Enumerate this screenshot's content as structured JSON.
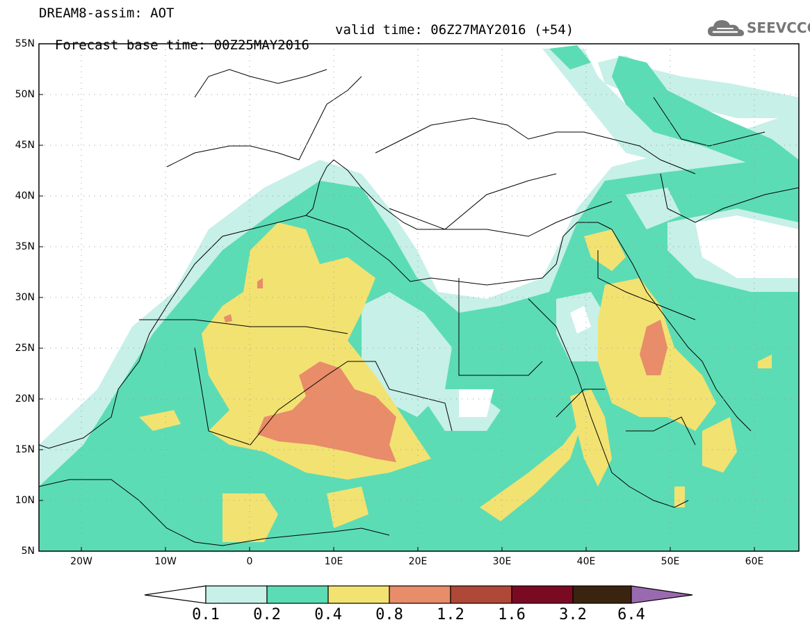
{
  "header": {
    "title": "DREAM8-assim: AOT",
    "base_time": "Forecast base time: 00Z25MAY2016",
    "valid_time": "valid time: 06Z27MAY2016 (+54)"
  },
  "logo": {
    "text": "SEEVCCC",
    "icon": "cloud-icon"
  },
  "map": {
    "projection": "equirectangular",
    "lon_range": [
      -25,
      65
    ],
    "lat_range": [
      5,
      55
    ],
    "lat_ticks": [
      "5N",
      "10N",
      "15N",
      "20N",
      "25N",
      "30N",
      "35N",
      "40N",
      "45N",
      "50N",
      "55N"
    ],
    "lon_ticks": [
      "20W",
      "10W",
      "0",
      "10E",
      "20E",
      "30E",
      "40E",
      "50E",
      "60E"
    ],
    "grid": "dotted"
  },
  "colorbar": {
    "labels": [
      "0.1",
      "0.2",
      "0.4",
      "0.8",
      "1.2",
      "1.6",
      "3.2",
      "6.4"
    ],
    "colors": [
      "#c6f0e8",
      "#5cdcb4",
      "#f2e272",
      "#e88c6a",
      "#b04838",
      "#7a0a22",
      "#3a2410",
      "#9a6ab0"
    ]
  }
}
